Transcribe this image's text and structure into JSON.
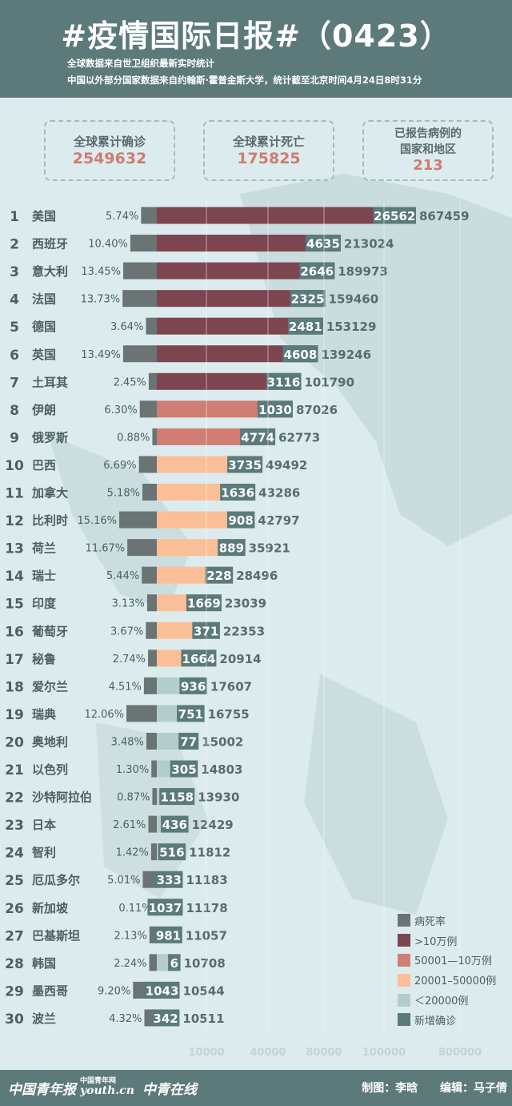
{
  "header": {
    "title": "#疫情国际日报#（0423）",
    "subtitle1": "全球数据来自世卫组织最新实时统计",
    "subtitle2": "中国以外部分国家数据来自约翰斯·霍普金斯大学，统计截至北京时间4月24日8时31分"
  },
  "stats": {
    "confirmed_label": "全球累计确诊",
    "confirmed_value": "2549632",
    "deaths_label": "全球累计死亡",
    "deaths_value": "175825",
    "countries_label1": "已报告病例的",
    "countries_label2": "国家和地区",
    "countries_value": "213"
  },
  "legend": [
    {
      "label": "病死率",
      "color": "#6a7475"
    },
    {
      "label": ">10万例",
      "color": "#7d4550"
    },
    {
      "label": "50001—10万例",
      "color": "#d07e74"
    },
    {
      "label": "20001–50000例",
      "color": "#fbbf97"
    },
    {
      "label": "＜20000例",
      "color": "#b3cdcd"
    },
    {
      "label": "新增确诊",
      "color": "#5a7a7b"
    }
  ],
  "chart_data": {
    "type": "bar",
    "x_scale": "log",
    "x_ticks": [
      "10000",
      "40000",
      "80000",
      "100000",
      "800000"
    ],
    "colors": {
      "death_rate": "#6a7475",
      "over_100k": "#7d4550",
      "50k_100k": "#d07e74",
      "20k_50k": "#fbbf97",
      "under_20k": "#b3cdcd",
      "new_cases": "#5a7a7b"
    },
    "countries": [
      {
        "rank": "1",
        "name": "美国",
        "death_rate": "5.74%",
        "new_cases": "26562",
        "total": 867459
      },
      {
        "rank": "2",
        "name": "西班牙",
        "death_rate": "10.40%",
        "new_cases": "4635",
        "total": 213024
      },
      {
        "rank": "3",
        "name": "意大利",
        "death_rate": "13.45%",
        "new_cases": "2646",
        "total": 189973
      },
      {
        "rank": "4",
        "name": "法国",
        "death_rate": "13.73%",
        "new_cases": "2325",
        "total": 159460
      },
      {
        "rank": "5",
        "name": "德国",
        "death_rate": "3.64%",
        "new_cases": "2481",
        "total": 153129
      },
      {
        "rank": "6",
        "name": "英国",
        "death_rate": "13.49%",
        "new_cases": "4608",
        "total": 139246
      },
      {
        "rank": "7",
        "name": "土耳其",
        "death_rate": "2.45%",
        "new_cases": "3116",
        "total": 101790
      },
      {
        "rank": "8",
        "name": "伊朗",
        "death_rate": "6.30%",
        "new_cases": "1030",
        "total": 87026
      },
      {
        "rank": "9",
        "name": "俄罗斯",
        "death_rate": "0.88%",
        "new_cases": "4774",
        "total": 62773
      },
      {
        "rank": "10",
        "name": "巴西",
        "death_rate": "6.69%",
        "new_cases": "3735",
        "total": 49492
      },
      {
        "rank": "11",
        "name": "加拿大",
        "death_rate": "5.18%",
        "new_cases": "1636",
        "total": 43286
      },
      {
        "rank": "12",
        "name": "比利时",
        "death_rate": "15.16%",
        "new_cases": "908",
        "total": 42797
      },
      {
        "rank": "13",
        "name": "荷兰",
        "death_rate": "11.67%",
        "new_cases": "889",
        "total": 35921
      },
      {
        "rank": "14",
        "name": "瑞士",
        "death_rate": "5.44%",
        "new_cases": "228",
        "total": 28496
      },
      {
        "rank": "15",
        "name": "印度",
        "death_rate": "3.13%",
        "new_cases": "1669",
        "total": 23039
      },
      {
        "rank": "16",
        "name": "葡萄牙",
        "death_rate": "3.67%",
        "new_cases": "371",
        "total": 22353
      },
      {
        "rank": "17",
        "name": "秘鲁",
        "death_rate": "2.74%",
        "new_cases": "1664",
        "total": 20914
      },
      {
        "rank": "18",
        "name": "爱尔兰",
        "death_rate": "4.51%",
        "new_cases": "936",
        "total": 17607
      },
      {
        "rank": "19",
        "name": "瑞典",
        "death_rate": "12.06%",
        "new_cases": "751",
        "total": 16755
      },
      {
        "rank": "20",
        "name": "奥地利",
        "death_rate": "3.48%",
        "new_cases": "77",
        "total": 15002
      },
      {
        "rank": "21",
        "name": "以色列",
        "death_rate": "1.30%",
        "new_cases": "305",
        "total": 14803
      },
      {
        "rank": "22",
        "name": "沙特阿拉伯",
        "death_rate": "0.87%",
        "new_cases": "1158",
        "total": 13930
      },
      {
        "rank": "23",
        "name": "日本",
        "death_rate": "2.61%",
        "new_cases": "436",
        "total": 12429
      },
      {
        "rank": "24",
        "name": "智利",
        "death_rate": "1.42%",
        "new_cases": "516",
        "total": 11812
      },
      {
        "rank": "25",
        "name": "厄瓜多尔",
        "death_rate": "5.01%",
        "new_cases": "333",
        "total": 11183
      },
      {
        "rank": "26",
        "name": "新加坡",
        "death_rate": "0.11%",
        "new_cases": "1037",
        "total": 11178
      },
      {
        "rank": "27",
        "name": "巴基斯坦",
        "death_rate": "2.13%",
        "new_cases": "981",
        "total": 11057
      },
      {
        "rank": "28",
        "name": "韩国",
        "death_rate": "2.24%",
        "new_cases": "6",
        "total": 10708
      },
      {
        "rank": "29",
        "name": "墨西哥",
        "death_rate": "9.20%",
        "new_cases": "1043",
        "total": 10544
      },
      {
        "rank": "30",
        "name": "波兰",
        "death_rate": "4.32%",
        "new_cases": "342",
        "total": 10511
      }
    ]
  },
  "footer": {
    "logo1": "中国青年报",
    "logo2_small": "中国青年网",
    "logo2": "youth.cn",
    "logo3": "中青在线",
    "credit_maker": "制图：李晗",
    "credit_editor": "编辑：马子倩"
  }
}
